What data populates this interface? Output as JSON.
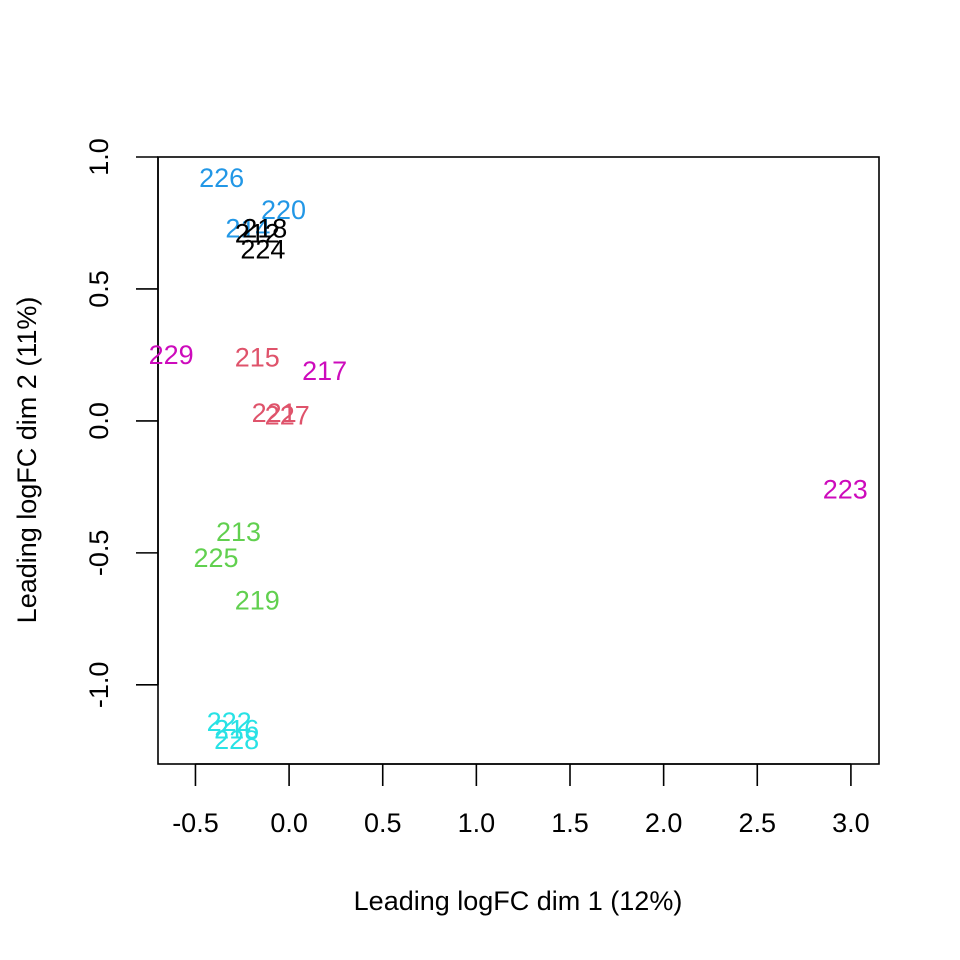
{
  "chart_data": {
    "type": "scatter",
    "xlabel": "Leading logFC dim 1 (12%)",
    "ylabel": "Leading logFC dim 2 (11%)",
    "xlim": [
      -0.7,
      3.15
    ],
    "ylim": [
      -1.3,
      1.0
    ],
    "xticks": [
      -0.5,
      0.0,
      0.5,
      1.0,
      1.5,
      2.0,
      2.5,
      3.0
    ],
    "xtick_labels": [
      "-0.5",
      "0.0",
      "0.5",
      "1.0",
      "1.5",
      "2.0",
      "2.5",
      "3.0"
    ],
    "yticks": [
      1.0,
      0.5,
      0.0,
      -0.5,
      -1.0
    ],
    "ytick_labels": [
      "1.0",
      "0.5",
      "0.0",
      "-0.5",
      "-1.0"
    ],
    "grid": false,
    "points": [
      {
        "label": "226",
        "x": -0.36,
        "y": 0.92,
        "color": "#2297E6"
      },
      {
        "label": "220",
        "x": -0.03,
        "y": 0.8,
        "color": "#2297E6"
      },
      {
        "label": "214",
        "x": -0.22,
        "y": 0.73,
        "color": "#2297E6"
      },
      {
        "label": "218",
        "x": -0.13,
        "y": 0.73,
        "color": "#000000"
      },
      {
        "label": "212",
        "x": -0.17,
        "y": 0.71,
        "color": "#000000"
      },
      {
        "label": "224",
        "x": -0.14,
        "y": 0.65,
        "color": "#000000"
      },
      {
        "label": "229",
        "x": -0.63,
        "y": 0.25,
        "color": "#CD0BBC"
      },
      {
        "label": "215",
        "x": -0.17,
        "y": 0.24,
        "color": "#DF536B"
      },
      {
        "label": "217",
        "x": 0.19,
        "y": 0.19,
        "color": "#CD0BBC"
      },
      {
        "label": "221",
        "x": -0.08,
        "y": 0.03,
        "color": "#DF536B"
      },
      {
        "label": "227",
        "x": -0.01,
        "y": 0.02,
        "color": "#DF536B"
      },
      {
        "label": "223",
        "x": 2.97,
        "y": -0.26,
        "color": "#CD0BBC"
      },
      {
        "label": "213",
        "x": -0.27,
        "y": -0.42,
        "color": "#61D04F"
      },
      {
        "label": "225",
        "x": -0.39,
        "y": -0.52,
        "color": "#61D04F"
      },
      {
        "label": "219",
        "x": -0.17,
        "y": -0.68,
        "color": "#61D04F"
      },
      {
        "label": "222",
        "x": -0.32,
        "y": -1.14,
        "color": "#28E2E5"
      },
      {
        "label": "216",
        "x": -0.28,
        "y": -1.17,
        "color": "#28E2E5"
      },
      {
        "label": "228",
        "x": -0.28,
        "y": -1.21,
        "color": "#28E2E5"
      }
    ]
  }
}
